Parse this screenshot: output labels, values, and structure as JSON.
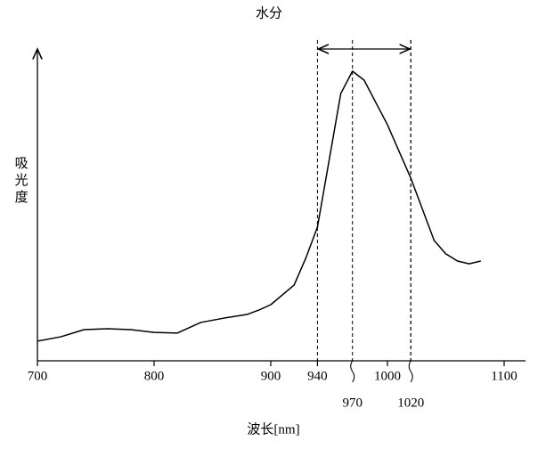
{
  "chart_data": {
    "type": "line",
    "title": "水分",
    "y_label": "吸光度",
    "x_label": "波长[nm]",
    "x": [
      700,
      720,
      740,
      760,
      780,
      800,
      820,
      840,
      860,
      880,
      890,
      900,
      920,
      930,
      940,
      950,
      960,
      970,
      980,
      1000,
      1020,
      1030,
      1040,
      1050,
      1060,
      1070,
      1080
    ],
    "values": [
      0.063,
      0.077,
      0.1,
      0.103,
      0.1,
      0.091,
      0.089,
      0.123,
      0.137,
      0.149,
      0.163,
      0.18,
      0.243,
      0.329,
      0.429,
      0.643,
      0.857,
      0.929,
      0.9,
      0.757,
      0.586,
      0.486,
      0.386,
      0.343,
      0.32,
      0.311,
      0.32
    ],
    "color": "#000000",
    "xlim": [
      700,
      1100
    ],
    "ylim": [
      0,
      1
    ],
    "xticks": [
      700,
      800,
      900,
      940,
      1000,
      1100
    ],
    "marker_ticks": [
      970,
      1020
    ],
    "range": [
      940,
      1020
    ]
  }
}
